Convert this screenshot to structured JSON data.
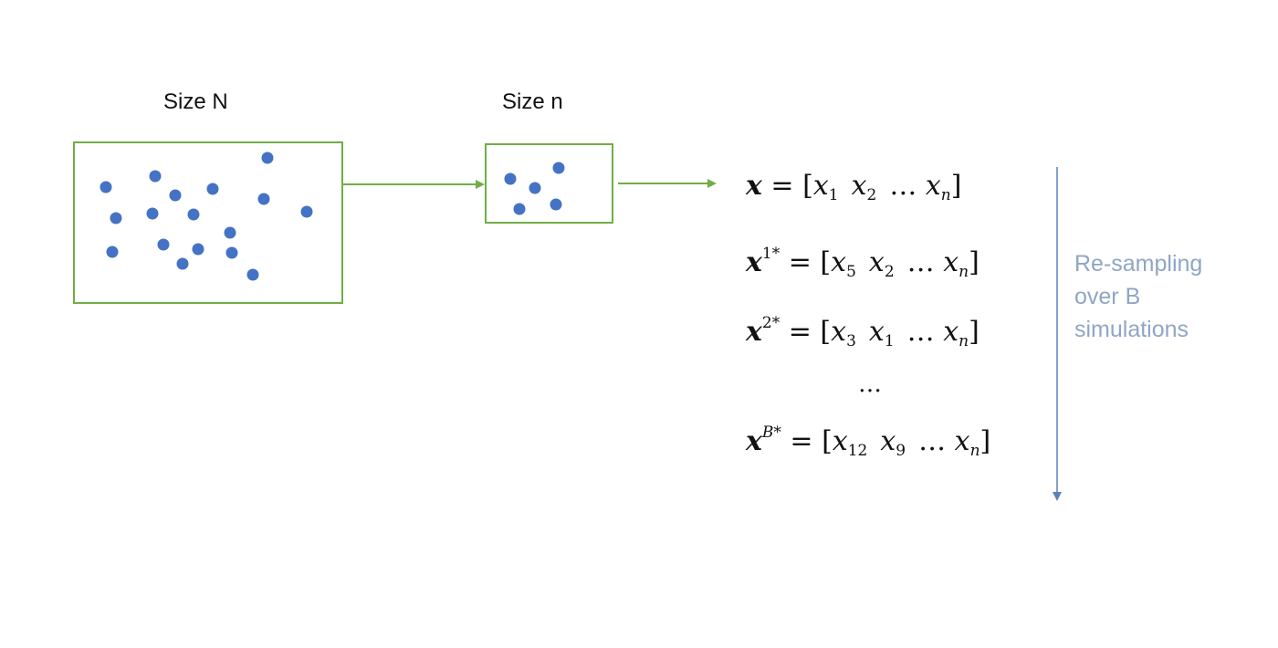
{
  "population": {
    "label": "Size N",
    "dot_count": 19
  },
  "sample": {
    "label": "Size n",
    "dot_count": 5
  },
  "vectors": {
    "original": {
      "name": "x",
      "sup": "",
      "e1": "1",
      "e2": "2",
      "last": "n"
    },
    "resample1": {
      "name": "x",
      "sup": "1*",
      "e1": "5",
      "e2": "2",
      "last": "n"
    },
    "resample2": {
      "name": "x",
      "sup": "2*",
      "e1": "3",
      "e2": "1",
      "last": "n"
    },
    "ellipsis": "…",
    "resampleB": {
      "name": "x",
      "sup": "B*",
      "e1": "12",
      "e2": "9",
      "last": "n"
    }
  },
  "side_note": {
    "line1": "Re-sampling",
    "line2": "over B",
    "line3": "simulations"
  },
  "colors": {
    "box_border": "#70ad47",
    "dot_fill": "#4472c4",
    "side_arrow": "#5b7fbf",
    "side_note_text": "#8fa6c4"
  }
}
